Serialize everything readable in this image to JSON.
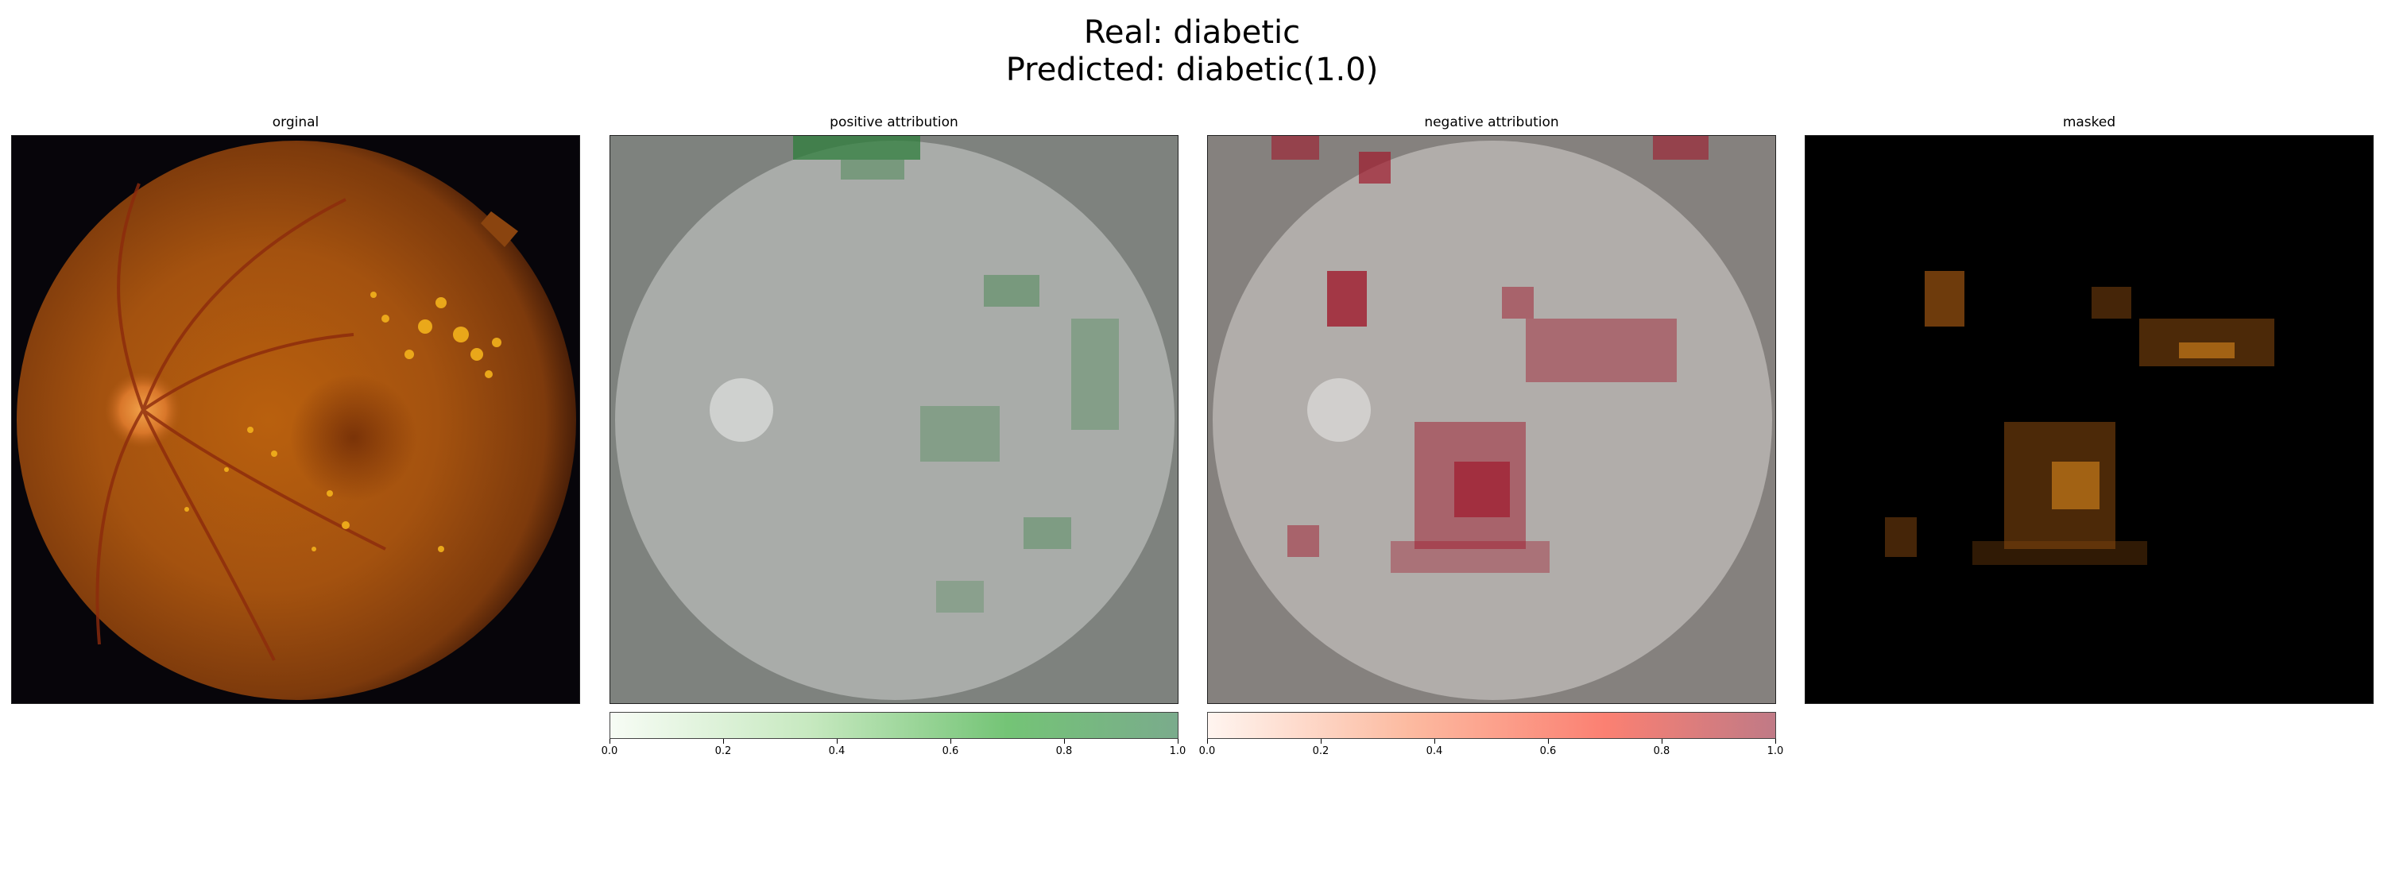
{
  "figure": {
    "title_line1": "Real: diabetic",
    "title_line2": "Predicted: diabetic(1.0)"
  },
  "panels": [
    {
      "title": "orginal",
      "kind": "fundus-original"
    },
    {
      "title": "positive attribution",
      "kind": "heatmap-positive"
    },
    {
      "title": "negative attribution",
      "kind": "heatmap-negative"
    },
    {
      "title": "masked",
      "kind": "masked-fundus"
    }
  ],
  "colorbars": {
    "positive": {
      "ticks": [
        "0.0",
        "0.2",
        "0.4",
        "0.6",
        "0.8",
        "1.0"
      ],
      "colormap": [
        "#f7fcf5",
        "#7aab8c"
      ]
    },
    "negative": {
      "ticks": [
        "0.0",
        "0.2",
        "0.4",
        "0.6",
        "0.8",
        "1.0"
      ],
      "colormap": [
        "#fff5f0",
        "#c07a86"
      ]
    }
  },
  "colors": {
    "positive_attribution": "#2f7d3c",
    "negative_attribution": "#a0192c",
    "fundus_base": "#b85a12"
  }
}
